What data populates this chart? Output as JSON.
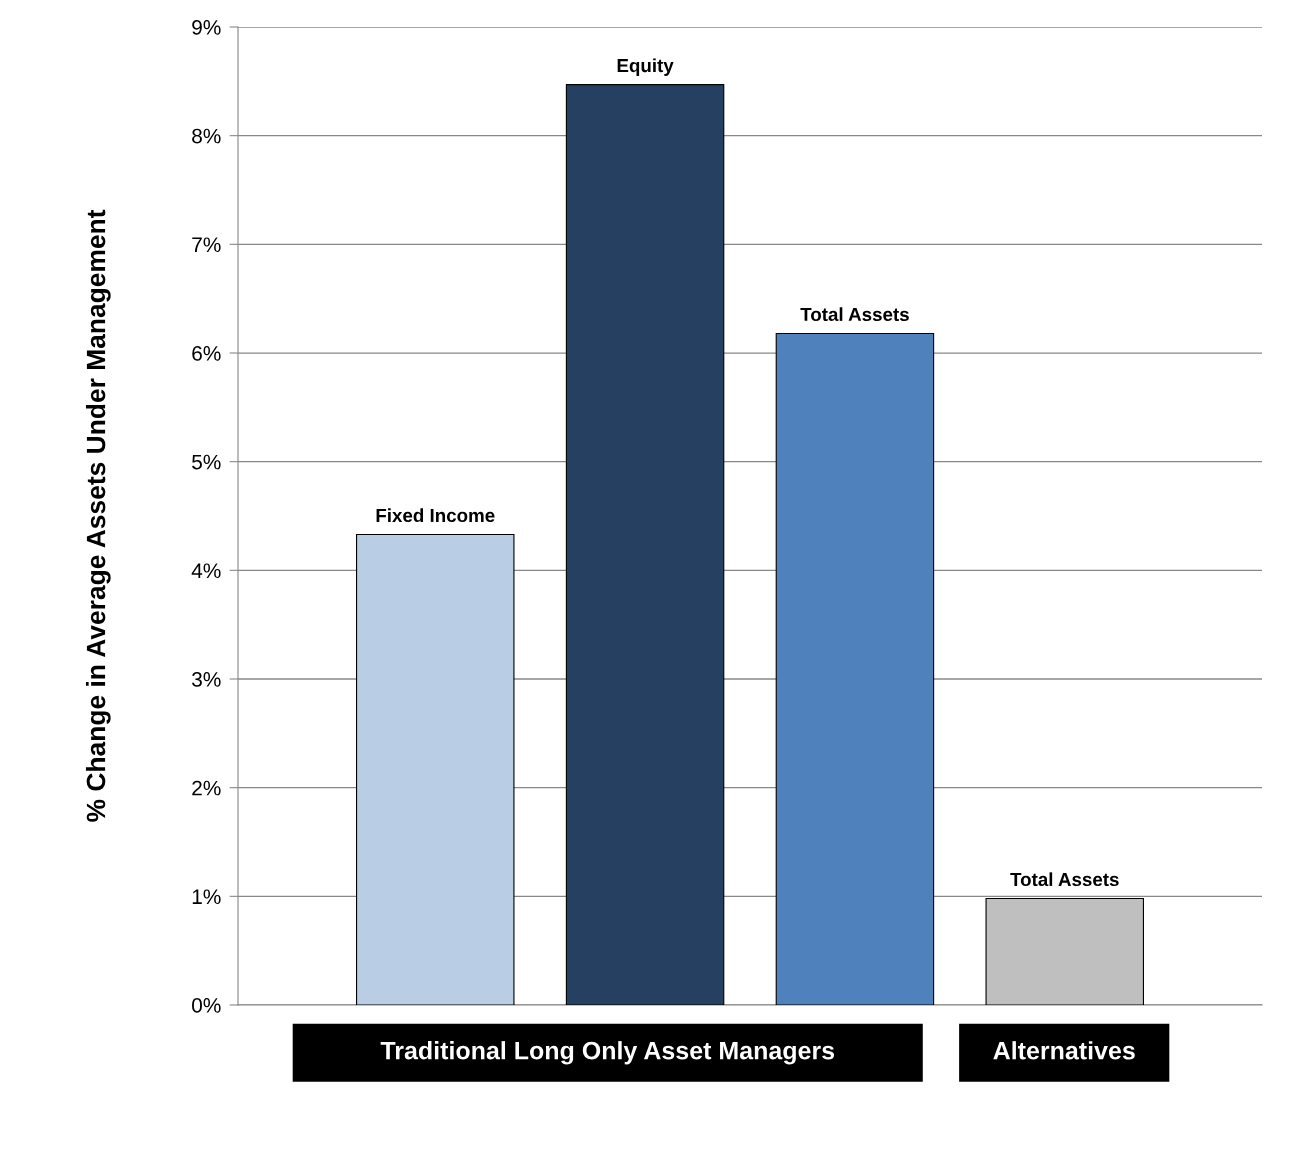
{
  "chart_data": {
    "type": "bar",
    "categories": [
      "Fixed Income",
      "Equity",
      "Total Assets",
      "Total Assets"
    ],
    "values": [
      4.33,
      8.47,
      6.18,
      0.98
    ],
    "colors": [
      "#b9cde5",
      "#254061",
      "#4f81bd",
      "#bfbfbf"
    ],
    "ylabel": "% Change in Average Assets Under Management",
    "ylim": [
      0,
      9
    ],
    "yticks": [
      {
        "value": 0,
        "label": "0%"
      },
      {
        "value": 1,
        "label": "1%"
      },
      {
        "value": 2,
        "label": "2%"
      },
      {
        "value": 3,
        "label": "3%"
      },
      {
        "value": 4,
        "label": "4%"
      },
      {
        "value": 5,
        "label": "5%"
      },
      {
        "value": 6,
        "label": "6%"
      },
      {
        "value": 7,
        "label": "7%"
      },
      {
        "value": 8,
        "label": "8%"
      },
      {
        "value": 9,
        "label": "9%"
      }
    ],
    "grid": "y",
    "annotations": [
      "Traditional Long Only Asset Managers",
      "Alternatives"
    ]
  }
}
